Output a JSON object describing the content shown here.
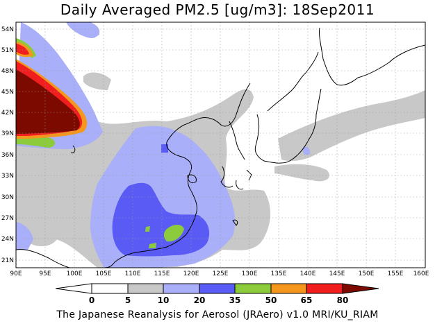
{
  "title": "Daily Averaged PM2.5 [ug/m3]: 18Sep2011",
  "footer": "The Japanese Reanalysis for Aerosol (JRAero) v1.0 MRI/KU_RIAM",
  "map": {
    "lon_range": [
      90,
      160
    ],
    "lat_range": [
      20,
      55
    ],
    "lon_ticks": [
      "90E",
      "95E",
      "100E",
      "105E",
      "110E",
      "115E",
      "120E",
      "125E",
      "130E",
      "135E",
      "140E",
      "145E",
      "150E",
      "155E",
      "160E"
    ],
    "lat_ticks": [
      "54N",
      "51N",
      "48N",
      "45N",
      "42N",
      "39N",
      "36N",
      "33N",
      "30N",
      "27N",
      "24N",
      "21N"
    ],
    "gridlines": true
  },
  "colorbar": {
    "labels": [
      "0",
      "5",
      "10",
      "20",
      "35",
      "50",
      "65",
      "80"
    ],
    "colors": [
      "#ffffff",
      "#c8c8c8",
      "#a9aff8",
      "#5a5af5",
      "#8ccc3c",
      "#f5961e",
      "#f01e1e",
      "#7d0a00"
    ]
  }
}
